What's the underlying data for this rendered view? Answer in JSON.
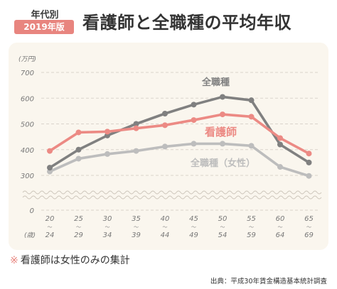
{
  "header": {
    "tag_top": "年代別",
    "tag_bottom": "2019年版",
    "title": "看護師と全職種の平均年収"
  },
  "footnote": {
    "mark": "※",
    "text": "看護師は女性のみの集計"
  },
  "source": "出典：平成30年賃金構造基本統計調査",
  "colors": {
    "all_jobs": "#808080",
    "nurse": "#ec8a84",
    "all_jobs_female": "#bdbdbd",
    "accent": "#e8857f",
    "panel_bg": "#faf6ee"
  },
  "chart_data": {
    "type": "line",
    "y_unit": "(万円)",
    "x_unit": "(歳)",
    "categories": [
      {
        "top": "20",
        "bottom": "24"
      },
      {
        "top": "25",
        "bottom": "29"
      },
      {
        "top": "30",
        "bottom": "34"
      },
      {
        "top": "35",
        "bottom": "39"
      },
      {
        "top": "40",
        "bottom": "44"
      },
      {
        "top": "45",
        "bottom": "49"
      },
      {
        "top": "50",
        "bottom": "54"
      },
      {
        "top": "55",
        "bottom": "59"
      },
      {
        "top": "60",
        "bottom": "64"
      },
      {
        "top": "65",
        "bottom": "69"
      }
    ],
    "range_mark": "〜",
    "yticks": [
      700,
      600,
      500,
      400,
      300
    ],
    "y_zero_label": "0",
    "ylim": [
      300,
      700
    ],
    "axis_break": true,
    "grid": true,
    "legend": "inline-labels",
    "series": [
      {
        "key": "all_jobs",
        "name": "全職種",
        "values": [
          330,
          400,
          455,
          500,
          540,
          575,
          605,
          592,
          420,
          350
        ]
      },
      {
        "key": "nurse",
        "name": "看護師",
        "values": [
          395,
          467,
          470,
          483,
          495,
          515,
          537,
          528,
          445,
          385
        ]
      },
      {
        "key": "all_jobs_female",
        "name": "全職種（女性）",
        "values": [
          315,
          365,
          383,
          395,
          412,
          423,
          423,
          415,
          333,
          298
        ]
      }
    ]
  }
}
